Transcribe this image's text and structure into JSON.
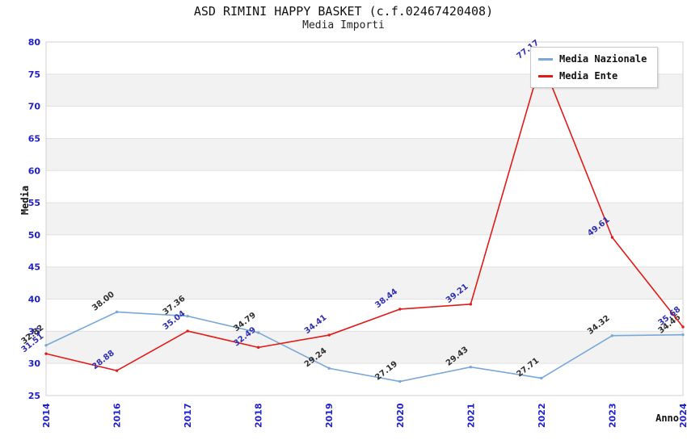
{
  "header": {
    "title": "ASD RIMINI HAPPY BASKET (c.f.02467420408)",
    "subtitle": "Media Importi"
  },
  "chart_data": {
    "type": "line",
    "title": "ASD RIMINI HAPPY BASKET (c.f.02467420408)",
    "subtitle": "Media Importi",
    "xlabel": "Anno",
    "ylabel": "Media",
    "ylim": [
      25,
      80
    ],
    "ytick_step": 5,
    "grid": "horizontal-bands",
    "legend_position": "top-right",
    "categories": [
      "2014",
      "2016",
      "2017",
      "2018",
      "2019",
      "2020",
      "2021",
      "2022",
      "2023",
      "2024"
    ],
    "series": [
      {
        "name": "Media Nazionale",
        "color": "#79a8d9",
        "label_color": "#303030",
        "values": [
          32.82,
          38.0,
          37.36,
          34.79,
          29.24,
          27.19,
          29.43,
          27.71,
          34.32,
          34.46
        ]
      },
      {
        "name": "Media Ente",
        "color": "#e01b18",
        "label_color": "#3030b0",
        "values": [
          31.51,
          28.88,
          35.04,
          32.49,
          34.41,
          38.44,
          39.21,
          77.17,
          49.61,
          35.68
        ]
      }
    ],
    "style": {
      "tick_label_color": "#2020cc",
      "band_color": "#f2f2f2",
      "grid_color": "#e0e0e0",
      "plot_border_color": "#d0d0d0",
      "background": "#ffffff"
    }
  }
}
